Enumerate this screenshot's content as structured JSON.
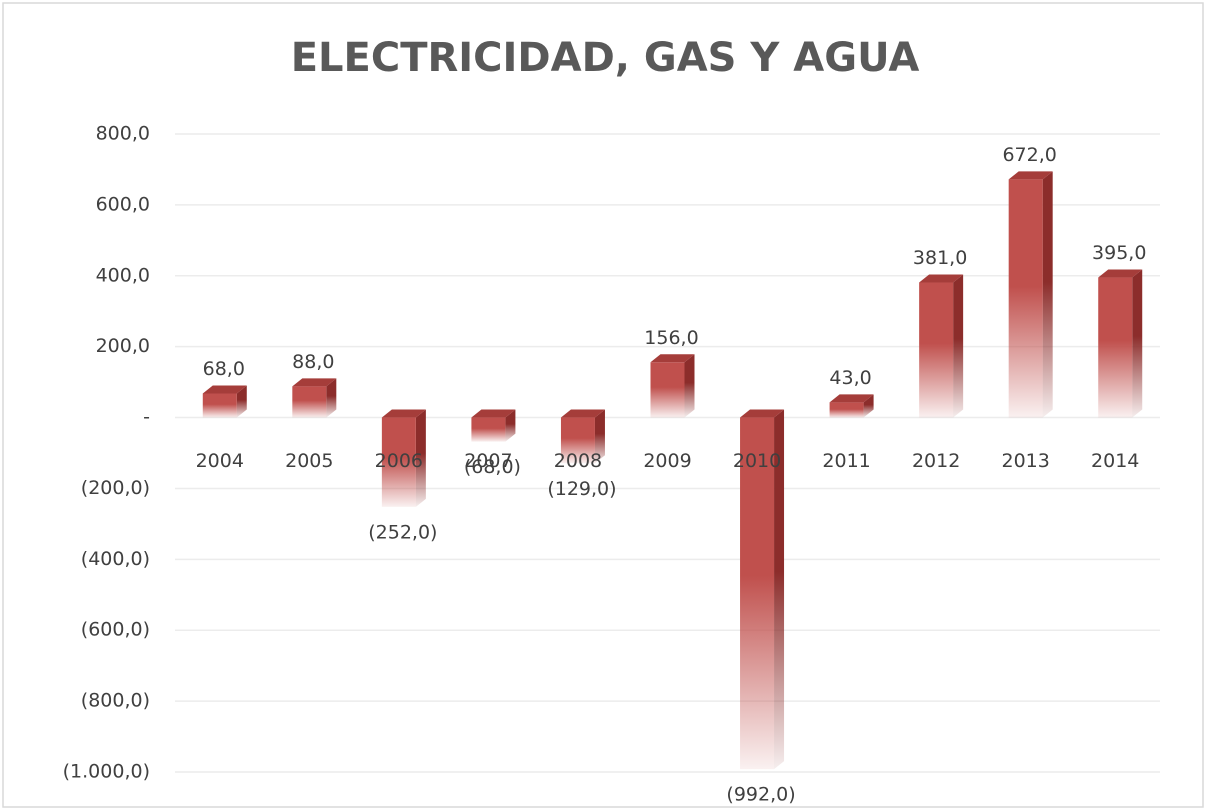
{
  "chart_data": {
    "type": "bar",
    "title": "ELECTRICIDAD, GAS Y AGUA",
    "categories": [
      "2004",
      "2005",
      "2006",
      "2007",
      "2008",
      "2009",
      "2010",
      "2011",
      "2012",
      "2013",
      "2014"
    ],
    "values": [
      68,
      88,
      -252,
      -68,
      -129,
      156,
      -992,
      43,
      381,
      672,
      395
    ],
    "value_labels": [
      "68,0",
      "88,0",
      "(252,0)",
      "(68,0)",
      "(129,0)",
      "156,0",
      "(992,0)",
      "43,0",
      "381,0",
      "672,0",
      "395,0"
    ],
    "color": "#c0504d",
    "ylim": [
      -1000,
      800
    ],
    "yticks": [
      {
        "value": 800,
        "label": "800,0"
      },
      {
        "value": 600,
        "label": "600,0"
      },
      {
        "value": 400,
        "label": "400,0"
      },
      {
        "value": 200,
        "label": "200,0"
      },
      {
        "value": 0,
        "label": "-"
      },
      {
        "value": -200,
        "label": "(200,0)"
      },
      {
        "value": -400,
        "label": "(400,0)"
      },
      {
        "value": -600,
        "label": "(600,0)"
      },
      {
        "value": -800,
        "label": "(800,0)"
      },
      {
        "value": -1000,
        "label": "(1.000,0)"
      }
    ],
    "grid": true
  }
}
